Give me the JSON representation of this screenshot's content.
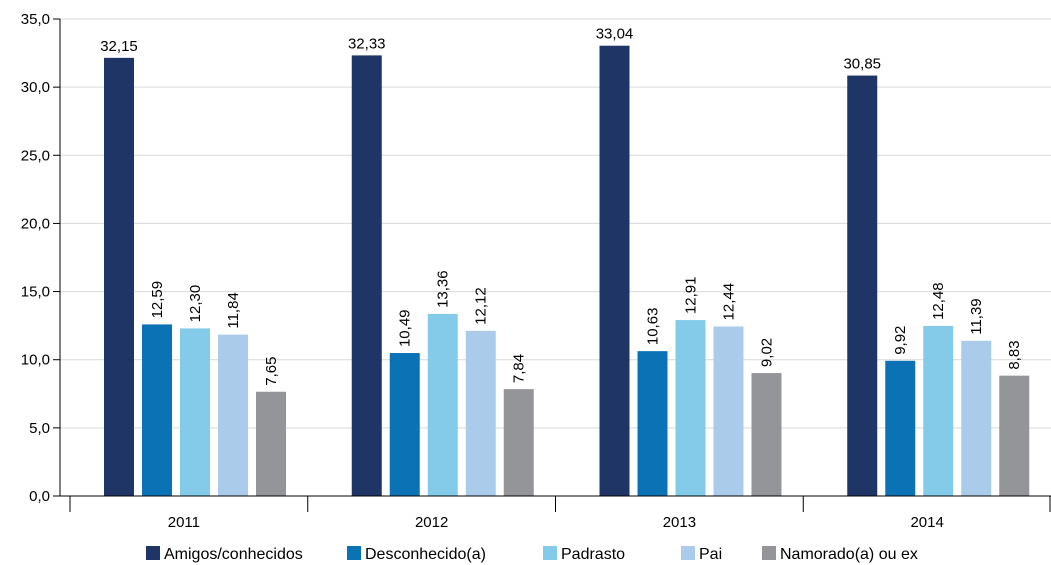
{
  "chart_data": {
    "type": "bar",
    "categories": [
      "2011",
      "2012",
      "2013",
      "2014"
    ],
    "series": [
      {
        "name": "Amigos/conhecidos",
        "color": "#1f3566",
        "values": [
          32.15,
          32.33,
          33.04,
          30.85
        ],
        "labels": [
          "32,15",
          "32,33",
          "33,04",
          "30,85"
        ]
      },
      {
        "name": "Desconhecido(a)",
        "color": "#0b72b5",
        "values": [
          12.59,
          10.49,
          10.63,
          9.92
        ],
        "labels": [
          "12,59",
          "10,49",
          "10,63",
          "9,92"
        ]
      },
      {
        "name": "Padrasto",
        "color": "#84cbea",
        "values": [
          12.3,
          13.36,
          12.91,
          12.48
        ],
        "labels": [
          "12,30",
          "13,36",
          "12,91",
          "12,48"
        ]
      },
      {
        "name": "Pai",
        "color": "#abcbea",
        "values": [
          11.84,
          12.12,
          12.44,
          11.39
        ],
        "labels": [
          "11,84",
          "12,12",
          "12,44",
          "11,39"
        ]
      },
      {
        "name": "Namorado(a) ou ex",
        "color": "#939598",
        "values": [
          7.65,
          7.84,
          9.02,
          8.83
        ],
        "labels": [
          "7,65",
          "7,84",
          "9,02",
          "8,83"
        ]
      }
    ],
    "yticks": [
      "0,0",
      "5,0",
      "10,0",
      "15,0",
      "20,0",
      "25,0",
      "30,0",
      "35,0"
    ],
    "ylim": [
      0,
      35
    ],
    "grid": true,
    "legend_position": "bottom",
    "title": "",
    "xlabel": "",
    "ylabel": ""
  }
}
